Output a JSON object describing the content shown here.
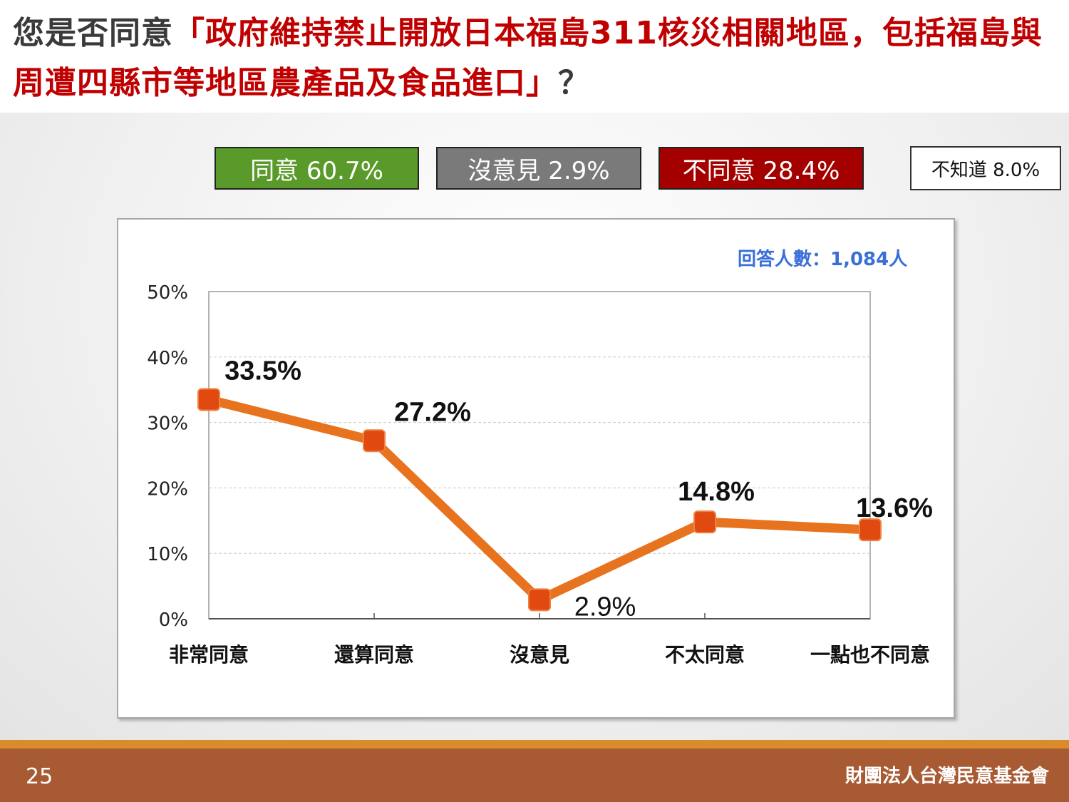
{
  "title": {
    "prefix": "您是否同意",
    "question": "「政府維持禁止開放日本福島311核災相關地區，包括福島與周遭四縣市等地區農產品及食品進口」",
    "suffix": "？"
  },
  "legend": {
    "agree": "同意 60.7%",
    "no_opinion": "沒意見 2.9%",
    "disagree": "不同意 28.4%",
    "dont_know": "不知道 8.0%"
  },
  "respondents": "回答人數：1,084人",
  "chart_data": {
    "type": "line",
    "categories": [
      "非常同意",
      "還算同意",
      "沒意見",
      "不太同意",
      "一點也不同意"
    ],
    "values": [
      33.5,
      27.2,
      2.9,
      14.8,
      13.6
    ],
    "data_labels": [
      "33.5%",
      "27.2%",
      "2.9%",
      "14.8%",
      "13.6%"
    ],
    "yticks": [
      "0%",
      "10%",
      "20%",
      "30%",
      "40%",
      "50%"
    ],
    "ylim": [
      0,
      50
    ],
    "grid": true,
    "line_color": "#e8731f",
    "marker_color": "#e04a10"
  },
  "footer": {
    "page": "25",
    "org": "財團法人台灣民意基金會"
  }
}
